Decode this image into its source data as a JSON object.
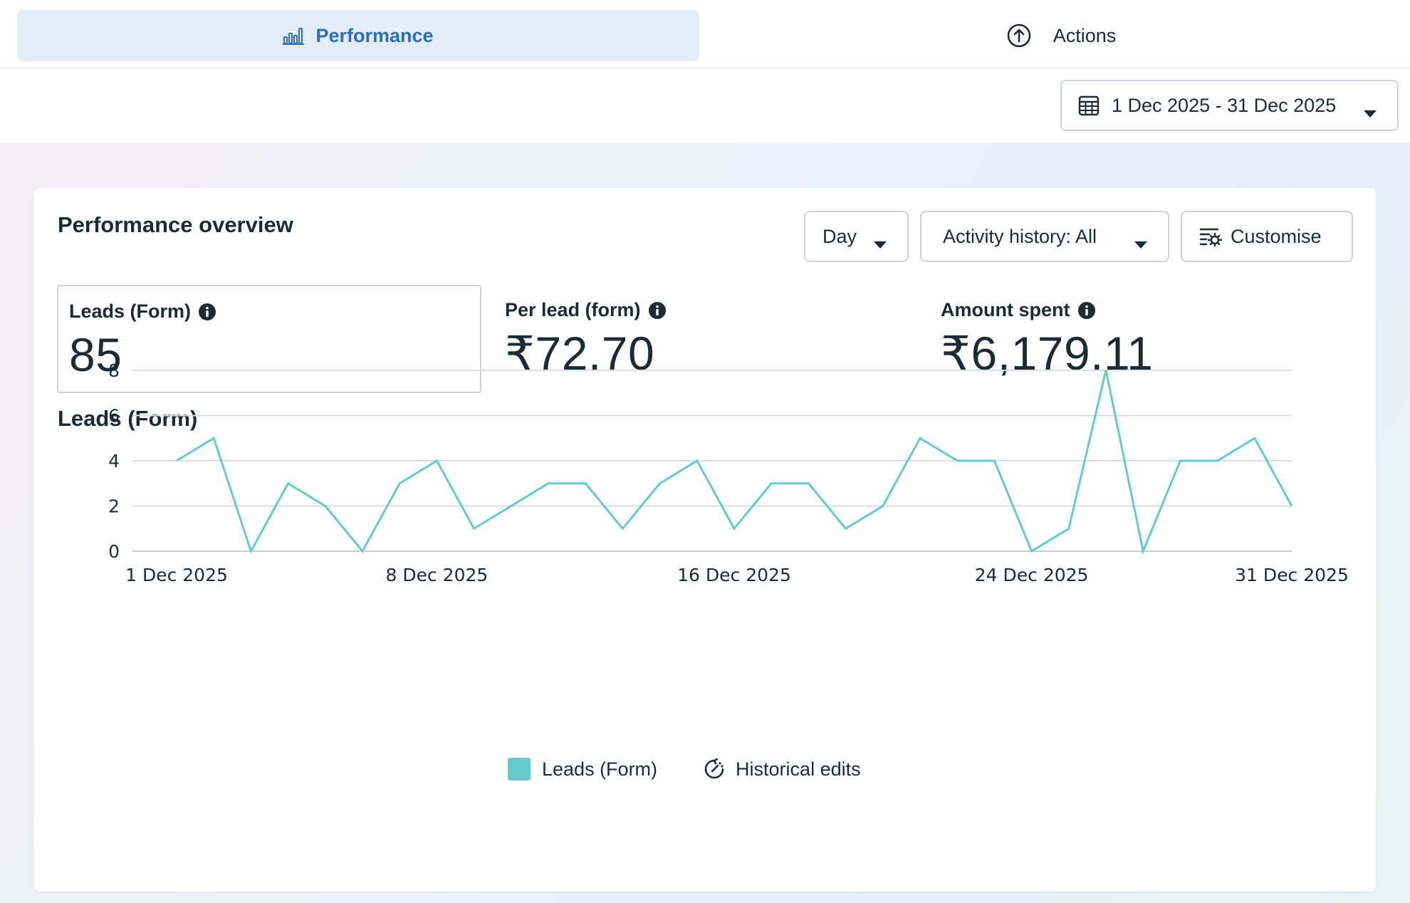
{
  "tabs": [
    {
      "label": "Performance",
      "icon": "bar-chart-icon",
      "active": true
    },
    {
      "label": "Actions",
      "icon": "upload-circle-icon",
      "active": false
    }
  ],
  "date_range": {
    "label": "1 Dec 2025 - 31 Dec 2025",
    "icon": "calendar-icon"
  },
  "card": {
    "title": "Performance overview",
    "controls": {
      "granularity": "Day",
      "activity": "Activity history: All",
      "customise": "Customise"
    },
    "metrics": [
      {
        "label": "Leads (Form)",
        "value": "85",
        "selected": true
      },
      {
        "label": "Per lead (form)",
        "value": "₹72.70",
        "selected": false
      },
      {
        "label": "Amount spent",
        "value": "₹6,179.11",
        "selected": false
      }
    ],
    "chart_title": "Leads (Form)",
    "legend": {
      "series_label": "Leads (Form)",
      "edits_label": "Historical edits"
    }
  },
  "colors": {
    "accent": "#2f6db5",
    "series": "#66c9cc",
    "grid": "#d9dde2",
    "tab_active_bg": "#e3edf7"
  },
  "chart_data": {
    "type": "line",
    "title": "Leads (Form)",
    "xlabel": "",
    "ylabel": "",
    "x": [
      "1 Dec 2025",
      "2 Dec 2025",
      "3 Dec 2025",
      "4 Dec 2025",
      "5 Dec 2025",
      "6 Dec 2025",
      "7 Dec 2025",
      "8 Dec 2025",
      "9 Dec 2025",
      "10 Dec 2025",
      "11 Dec 2025",
      "12 Dec 2025",
      "13 Dec 2025",
      "14 Dec 2025",
      "15 Dec 2025",
      "16 Dec 2025",
      "17 Dec 2025",
      "18 Dec 2025",
      "19 Dec 2025",
      "20 Dec 2025",
      "21 Dec 2025",
      "22 Dec 2025",
      "23 Dec 2025",
      "24 Dec 2025",
      "25 Dec 2025",
      "26 Dec 2025",
      "27 Dec 2025",
      "28 Dec 2025",
      "29 Dec 2025",
      "30 Dec 2025",
      "31 Dec 2025"
    ],
    "x_tick_labels": [
      {
        "label": "1 Dec 2025",
        "index": 0
      },
      {
        "label": "8 Dec 2025",
        "index": 7
      },
      {
        "label": "16 Dec 2025",
        "index": 15
      },
      {
        "label": "24 Dec 2025",
        "index": 23
      },
      {
        "label": "31 Dec 2025",
        "index": 30
      }
    ],
    "series": [
      {
        "name": "Leads (Form)",
        "values": [
          4,
          5,
          0,
          3,
          2,
          0,
          3,
          4,
          1,
          2,
          3,
          3,
          1,
          3,
          4,
          1,
          3,
          3,
          1,
          2,
          5,
          4,
          4,
          0,
          1,
          8,
          0,
          4,
          4,
          5,
          2
        ]
      }
    ],
    "ylim": [
      0,
      8
    ],
    "y_ticks": [
      "0",
      "2",
      "4",
      "6",
      "8"
    ],
    "grid": true,
    "legend_position": "bottom"
  }
}
